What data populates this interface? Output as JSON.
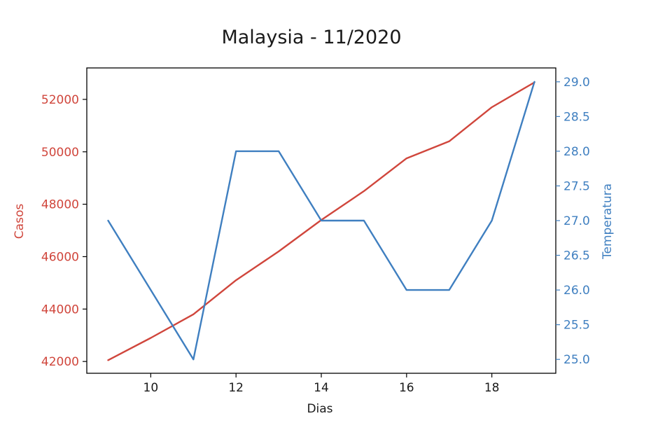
{
  "chart_data": {
    "type": "line",
    "title": "Malaysia - 11/2020",
    "xlabel": "Dias",
    "x": [
      9,
      10,
      11,
      12,
      13,
      14,
      15,
      16,
      17,
      18,
      19
    ],
    "xlim": [
      8.5,
      19.5
    ],
    "xticks": [
      10,
      12,
      14,
      16,
      18
    ],
    "grid": false,
    "colors": {
      "casos": "#d0463c",
      "temperatura": "#3f7fc0",
      "axis": "#000000"
    },
    "series": [
      {
        "name": "Casos",
        "axis": "left",
        "ylabel": "Casos",
        "color": "#d0463c",
        "values": [
          42050,
          42900,
          43800,
          45100,
          46200,
          47400,
          48500,
          49750,
          50400,
          51700,
          52650
        ],
        "ylim": [
          41550,
          53200
        ],
        "yticks": [
          42000,
          44000,
          46000,
          48000,
          50000,
          52000
        ],
        "ytick_labels": [
          "42000",
          "44000",
          "46000",
          "48000",
          "50000",
          "52000"
        ]
      },
      {
        "name": "Temperatura",
        "axis": "right",
        "ylabel": "Temperatura",
        "color": "#3f7fc0",
        "values": [
          27.0,
          26.0,
          25.0,
          28.0,
          28.0,
          27.0,
          27.0,
          26.0,
          26.0,
          27.0,
          29.0
        ],
        "ylim": [
          24.8,
          29.2
        ],
        "yticks": [
          25.0,
          25.5,
          26.0,
          26.5,
          27.0,
          27.5,
          28.0,
          28.5,
          29.0
        ],
        "ytick_labels": [
          "25.0",
          "25.5",
          "26.0",
          "26.5",
          "27.0",
          "27.5",
          "28.0",
          "28.5",
          "29.0"
        ]
      }
    ]
  }
}
